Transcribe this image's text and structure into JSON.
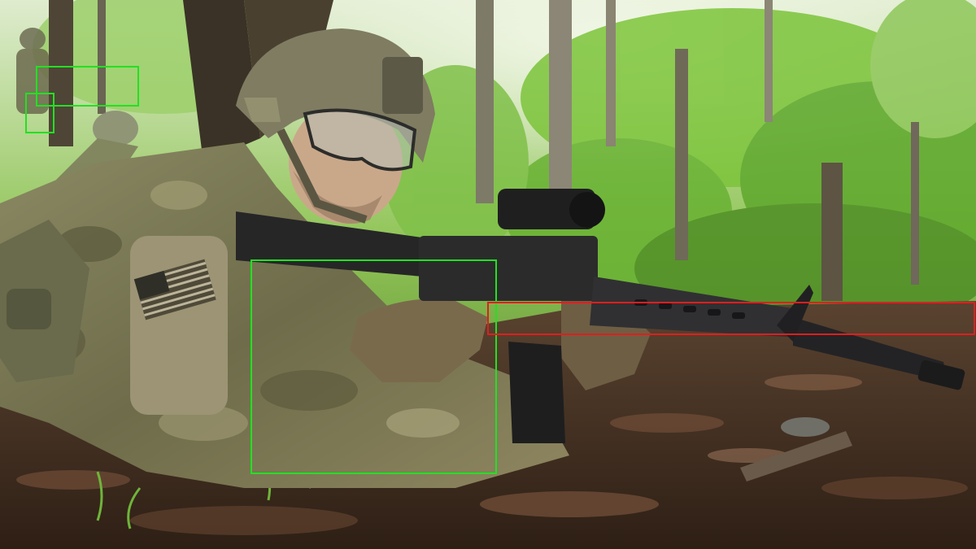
{
  "scene": {
    "colors": {
      "detection_box_green": "#22e122",
      "detection_box_red": "#e11e1e",
      "foliage": "#6bb832",
      "ground": "#4a3222",
      "uniform": "#7a7a52"
    }
  },
  "detections": [
    {
      "id": "box-1",
      "color": "#22e122"
    },
    {
      "id": "box-2",
      "color": "#22e122"
    },
    {
      "id": "box-3",
      "color": "#22e122"
    },
    {
      "id": "box-4",
      "color": "#e11e1e"
    }
  ]
}
